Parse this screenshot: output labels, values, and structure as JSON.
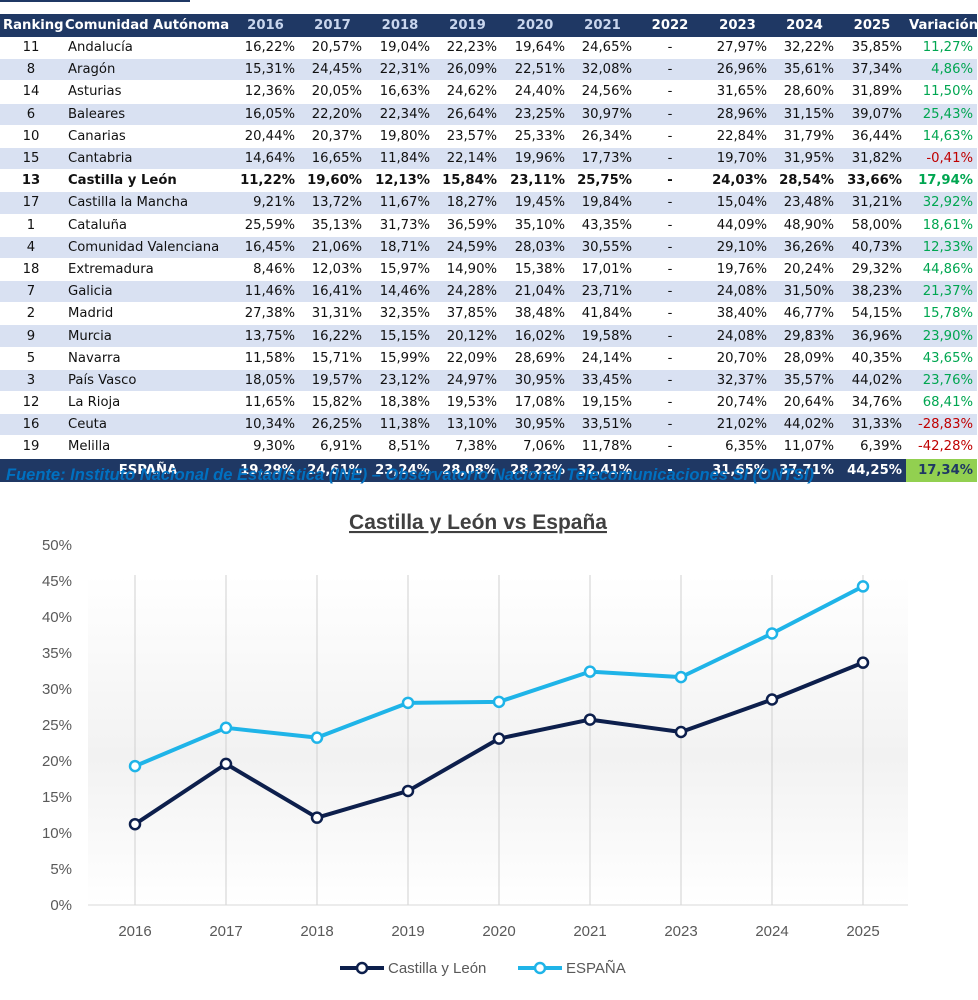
{
  "table": {
    "headers": [
      "Ranking",
      "Comunidad Autónoma",
      "2016",
      "2017",
      "2018",
      "2019",
      "2020",
      "2021",
      "2022",
      "2023",
      "2024",
      "2025",
      "Variación"
    ],
    "rows": [
      {
        "rank": "11",
        "name": "Andalucía",
        "values": [
          "16,22%",
          "20,57%",
          "19,04%",
          "22,23%",
          "19,64%",
          "24,65%",
          "-",
          "27,97%",
          "32,22%",
          "35,85%"
        ],
        "variation": "11,27%",
        "sign": "pos"
      },
      {
        "rank": "8",
        "name": "Aragón",
        "values": [
          "15,31%",
          "24,45%",
          "22,31%",
          "26,09%",
          "22,51%",
          "32,08%",
          "-",
          "26,96%",
          "35,61%",
          "37,34%"
        ],
        "variation": "4,86%",
        "sign": "pos"
      },
      {
        "rank": "14",
        "name": "Asturias",
        "values": [
          "12,36%",
          "20,05%",
          "16,63%",
          "24,62%",
          "24,40%",
          "24,56%",
          "-",
          "31,65%",
          "28,60%",
          "31,89%"
        ],
        "variation": "11,50%",
        "sign": "pos"
      },
      {
        "rank": "6",
        "name": "Baleares",
        "values": [
          "16,05%",
          "22,20%",
          "22,34%",
          "26,64%",
          "23,25%",
          "30,97%",
          "-",
          "28,96%",
          "31,15%",
          "39,07%"
        ],
        "variation": "25,43%",
        "sign": "pos"
      },
      {
        "rank": "10",
        "name": "Canarias",
        "values": [
          "20,44%",
          "20,37%",
          "19,80%",
          "23,57%",
          "25,33%",
          "26,34%",
          "-",
          "22,84%",
          "31,79%",
          "36,44%"
        ],
        "variation": "14,63%",
        "sign": "pos"
      },
      {
        "rank": "15",
        "name": "Cantabria",
        "values": [
          "14,64%",
          "16,65%",
          "11,84%",
          "22,14%",
          "19,96%",
          "17,73%",
          "-",
          "19,70%",
          "31,95%",
          "31,82%"
        ],
        "variation": "-0,41%",
        "sign": "neg"
      },
      {
        "rank": "13",
        "name": "Castilla y León",
        "values": [
          "11,22%",
          "19,60%",
          "12,13%",
          "15,84%",
          "23,11%",
          "25,75%",
          "-",
          "24,03%",
          "28,54%",
          "33,66%"
        ],
        "variation": "17,94%",
        "sign": "pos",
        "highlight": true
      },
      {
        "rank": "17",
        "name": "Castilla la Mancha",
        "values": [
          "9,21%",
          "13,72%",
          "11,67%",
          "18,27%",
          "19,45%",
          "19,84%",
          "-",
          "15,04%",
          "23,48%",
          "31,21%"
        ],
        "variation": "32,92%",
        "sign": "pos"
      },
      {
        "rank": "1",
        "name": "Cataluña",
        "values": [
          "25,59%",
          "35,13%",
          "31,73%",
          "36,59%",
          "35,10%",
          "43,35%",
          "-",
          "44,09%",
          "48,90%",
          "58,00%"
        ],
        "variation": "18,61%",
        "sign": "pos"
      },
      {
        "rank": "4",
        "name": "Comunidad Valenciana",
        "values": [
          "16,45%",
          "21,06%",
          "18,71%",
          "24,59%",
          "28,03%",
          "30,55%",
          "-",
          "29,10%",
          "36,26%",
          "40,73%"
        ],
        "variation": "12,33%",
        "sign": "pos"
      },
      {
        "rank": "18",
        "name": "Extremadura",
        "values": [
          "8,46%",
          "12,03%",
          "15,97%",
          "14,90%",
          "15,38%",
          "17,01%",
          "-",
          "19,76%",
          "20,24%",
          "29,32%"
        ],
        "variation": "44,86%",
        "sign": "pos"
      },
      {
        "rank": "7",
        "name": "Galicia",
        "values": [
          "11,46%",
          "16,41%",
          "14,46%",
          "24,28%",
          "21,04%",
          "23,71%",
          "-",
          "24,08%",
          "31,50%",
          "38,23%"
        ],
        "variation": "21,37%",
        "sign": "pos"
      },
      {
        "rank": "2",
        "name": "Madrid",
        "values": [
          "27,38%",
          "31,31%",
          "32,35%",
          "37,85%",
          "38,48%",
          "41,84%",
          "-",
          "38,40%",
          "46,77%",
          "54,15%"
        ],
        "variation": "15,78%",
        "sign": "pos"
      },
      {
        "rank": "9",
        "name": "Murcia",
        "values": [
          "13,75%",
          "16,22%",
          "15,15%",
          "20,12%",
          "16,02%",
          "19,58%",
          "-",
          "24,08%",
          "29,83%",
          "36,96%"
        ],
        "variation": "23,90%",
        "sign": "pos"
      },
      {
        "rank": "5",
        "name": "Navarra",
        "values": [
          "11,58%",
          "15,71%",
          "15,99%",
          "22,09%",
          "28,69%",
          "24,14%",
          "-",
          "20,70%",
          "28,09%",
          "40,35%"
        ],
        "variation": "43,65%",
        "sign": "pos"
      },
      {
        "rank": "3",
        "name": "País Vasco",
        "values": [
          "18,05%",
          "19,57%",
          "23,12%",
          "24,97%",
          "30,95%",
          "33,45%",
          "-",
          "32,37%",
          "35,57%",
          "44,02%"
        ],
        "variation": "23,76%",
        "sign": "pos"
      },
      {
        "rank": "12",
        "name": "La Rioja",
        "values": [
          "11,65%",
          "15,82%",
          "18,38%",
          "19,53%",
          "17,08%",
          "19,15%",
          "-",
          "20,74%",
          "20,64%",
          "34,76%"
        ],
        "variation": "68,41%",
        "sign": "pos"
      },
      {
        "rank": "16",
        "name": "Ceuta",
        "values": [
          "10,34%",
          "26,25%",
          "11,38%",
          "13,10%",
          "30,95%",
          "33,51%",
          "-",
          "21,02%",
          "44,02%",
          "31,33%"
        ],
        "variation": "-28,83%",
        "sign": "neg"
      },
      {
        "rank": "19",
        "name": "Melilla",
        "values": [
          "9,30%",
          "6,91%",
          "8,51%",
          "7,38%",
          "7,06%",
          "11,78%",
          "-",
          "6,35%",
          "11,07%",
          "6,39%"
        ],
        "variation": "-42,28%",
        "sign": "neg"
      }
    ],
    "total": {
      "name": "ESPAÑA",
      "values": [
        "19,29%",
        "24,61%",
        "23,24%",
        "28,08%",
        "28,22%",
        "32,41%",
        "-",
        "31,65%",
        "37,71%",
        "44,25%"
      ],
      "variation": "17,34%"
    }
  },
  "source_text": "Fuente: Instituto Nacional de Estadística (INE) – Observatorio Nacional Telecomunicaciones SI (ONTSI)",
  "colors": {
    "header_bg": "#1f3864",
    "stripe": "#d9e1f2",
    "positive": "#00a651",
    "negative": "#c00000",
    "total_variation_bg": "#92d050",
    "series_cyl": "#0d1f4c",
    "series_esp": "#1fb4e8",
    "source": "#0070c0"
  },
  "chart_data": {
    "type": "line",
    "title": "Castilla y León vs España",
    "xlabel": "",
    "ylabel": "",
    "categories": [
      "2016",
      "2017",
      "2018",
      "2019",
      "2020",
      "2021",
      "2023",
      "2024",
      "2025"
    ],
    "series": [
      {
        "name": "Castilla y León",
        "color": "#0d1f4c",
        "values": [
          11.22,
          19.6,
          12.13,
          15.84,
          23.11,
          25.75,
          24.03,
          28.54,
          33.66
        ]
      },
      {
        "name": "ESPAÑA",
        "color": "#1fb4e8",
        "values": [
          19.29,
          24.61,
          23.24,
          28.08,
          28.22,
          32.41,
          31.65,
          37.71,
          44.25
        ]
      }
    ],
    "ylim": [
      0,
      50
    ],
    "yticks": [
      0,
      5,
      10,
      15,
      20,
      25,
      30,
      35,
      40,
      45,
      50
    ],
    "ytick_labels": [
      "0%",
      "5%",
      "10%",
      "15%",
      "20%",
      "25%",
      "30%",
      "35%",
      "40%",
      "45%",
      "50%"
    ],
    "grid": "vertical",
    "legend": "bottom"
  }
}
